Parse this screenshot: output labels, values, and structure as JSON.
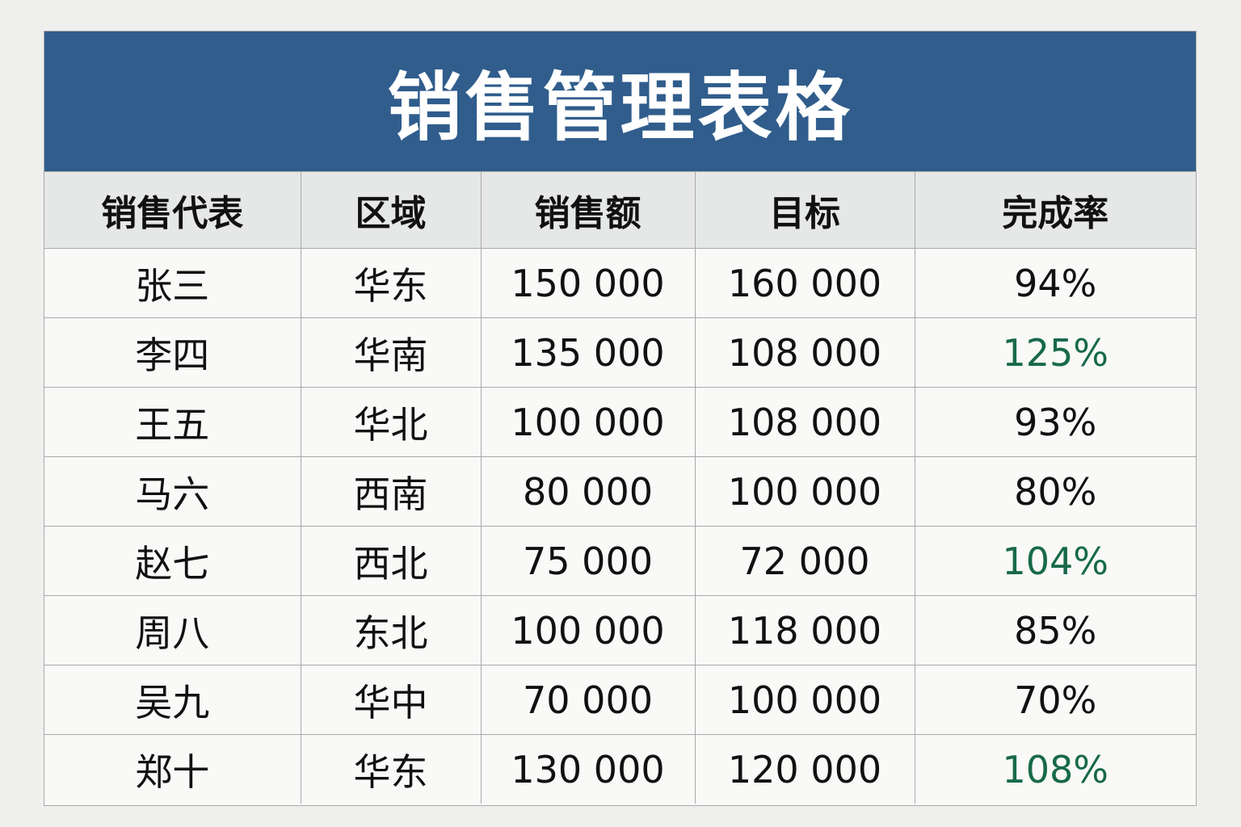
{
  "title": "销售管理表格",
  "columns": [
    "销售代表",
    "区域",
    "销售额",
    "目标",
    "完成率"
  ],
  "rows": [
    [
      "张三",
      "华东",
      "150 000",
      "160 000",
      "94%"
    ],
    [
      "李四",
      "华南",
      "135 000",
      "108 000",
      "125%"
    ],
    [
      "王五",
      "华北",
      "100 000",
      "108 000",
      "93%"
    ],
    [
      "马六",
      "西南",
      "80 000",
      "100 000",
      "80%"
    ],
    [
      "赵七",
      "西北",
      "75 000",
      "72 000",
      "104%"
    ],
    [
      "周八",
      "东北",
      "100 000",
      "118 000",
      "85%"
    ],
    [
      "吴九",
      "华中",
      "70 000",
      "100 000",
      "70%"
    ],
    [
      "郑十",
      "华东",
      "130 000",
      "120 000",
      "108%"
    ]
  ],
  "colors": {
    "title_bar": "#305d8c",
    "header_bg": "#e6e7e7",
    "over_target_text": "#17694a",
    "normal_text": "#111111"
  }
}
